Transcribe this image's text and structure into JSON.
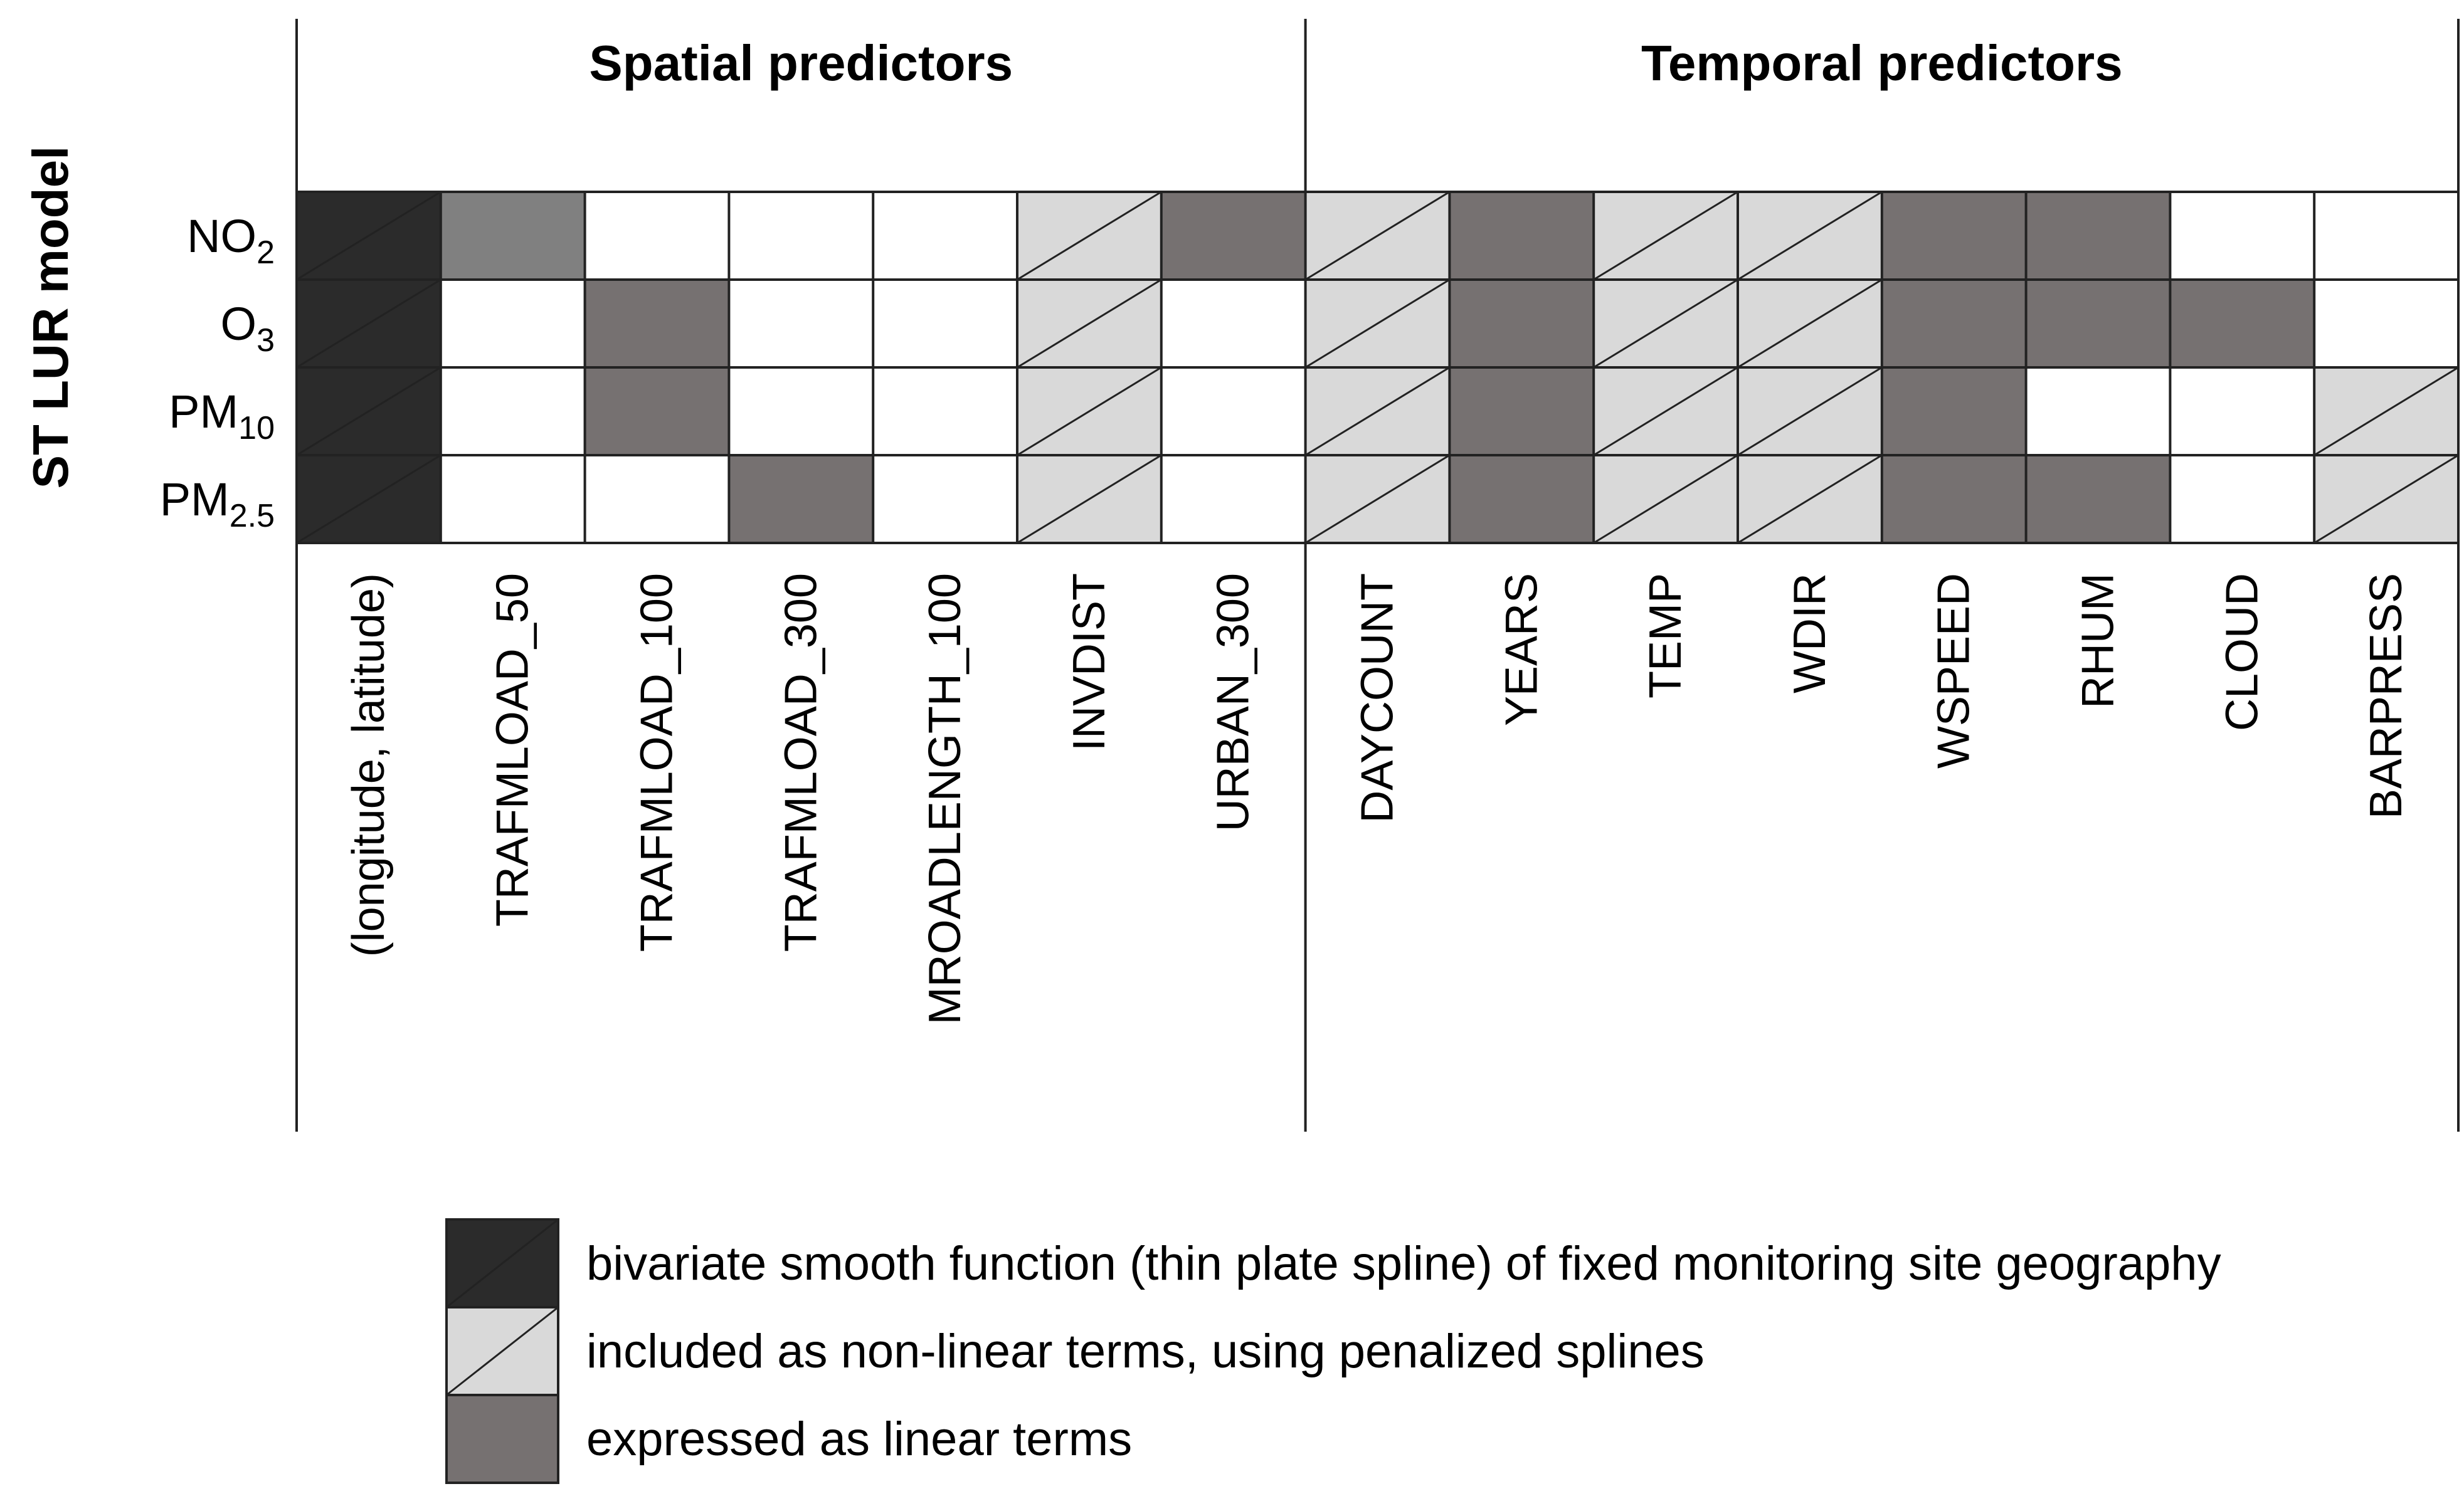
{
  "figure": {
    "y_axis_title": "ST LUR model",
    "groups": [
      {
        "id": "spatial",
        "label": "Spatial predictors",
        "span": 7
      },
      {
        "id": "temporal",
        "label": "Temporal predictors",
        "span": 8
      }
    ],
    "rows": [
      {
        "main": "NO",
        "sub": "2"
      },
      {
        "main": "O",
        "sub": "3"
      },
      {
        "main": "PM",
        "sub": "10"
      },
      {
        "main": "PM",
        "sub": "2.5"
      }
    ],
    "columns": [
      "(longitude, latitude)",
      "TRAFMLOAD_50",
      "TRAFMLOAD_100",
      "TRAFMLOAD_300",
      "MROADLENGTH_100",
      "INVDIST",
      "URBAN_300",
      "DAYCOUNT",
      "YEARS",
      "TEMP",
      "WDIR",
      "WSPEED",
      "RHUM",
      "CLOUD",
      "BARPRESS"
    ],
    "cells": [
      [
        "bivariate",
        "linear_light",
        "none",
        "none",
        "none",
        "nonlinear",
        "linear",
        "nonlinear",
        "linear",
        "nonlinear",
        "nonlinear",
        "linear",
        "linear",
        "none",
        "none"
      ],
      [
        "bivariate",
        "none",
        "linear",
        "none",
        "none",
        "nonlinear",
        "none",
        "nonlinear",
        "linear",
        "nonlinear",
        "nonlinear",
        "linear",
        "linear",
        "linear",
        "none"
      ],
      [
        "bivariate",
        "none",
        "linear",
        "none",
        "none",
        "nonlinear",
        "none",
        "nonlinear",
        "linear",
        "nonlinear",
        "nonlinear",
        "linear",
        "none",
        "none",
        "nonlinear"
      ],
      [
        "bivariate",
        "none",
        "none",
        "linear",
        "none",
        "nonlinear",
        "none",
        "nonlinear",
        "linear",
        "nonlinear",
        "nonlinear",
        "linear",
        "linear",
        "none",
        "nonlinear"
      ]
    ],
    "styles": {
      "bivariate": {
        "fill": "#2b2b2b",
        "diagonal": true
      },
      "nonlinear": {
        "fill": "#d9d9d9",
        "diagonal": true
      },
      "linear": {
        "fill": "#767171",
        "diagonal": false
      },
      "linear_light": {
        "fill": "#808080",
        "diagonal": false
      },
      "none": {
        "fill": "#ffffff",
        "diagonal": false
      }
    },
    "legend": [
      {
        "style": "bivariate",
        "label": "bivariate smooth function (thin plate spline) of fixed monitoring site geography"
      },
      {
        "style": "nonlinear",
        "label": "included as non-linear terms, using penalized splines"
      },
      {
        "style": "linear",
        "label": "expressed as linear terms"
      }
    ]
  }
}
